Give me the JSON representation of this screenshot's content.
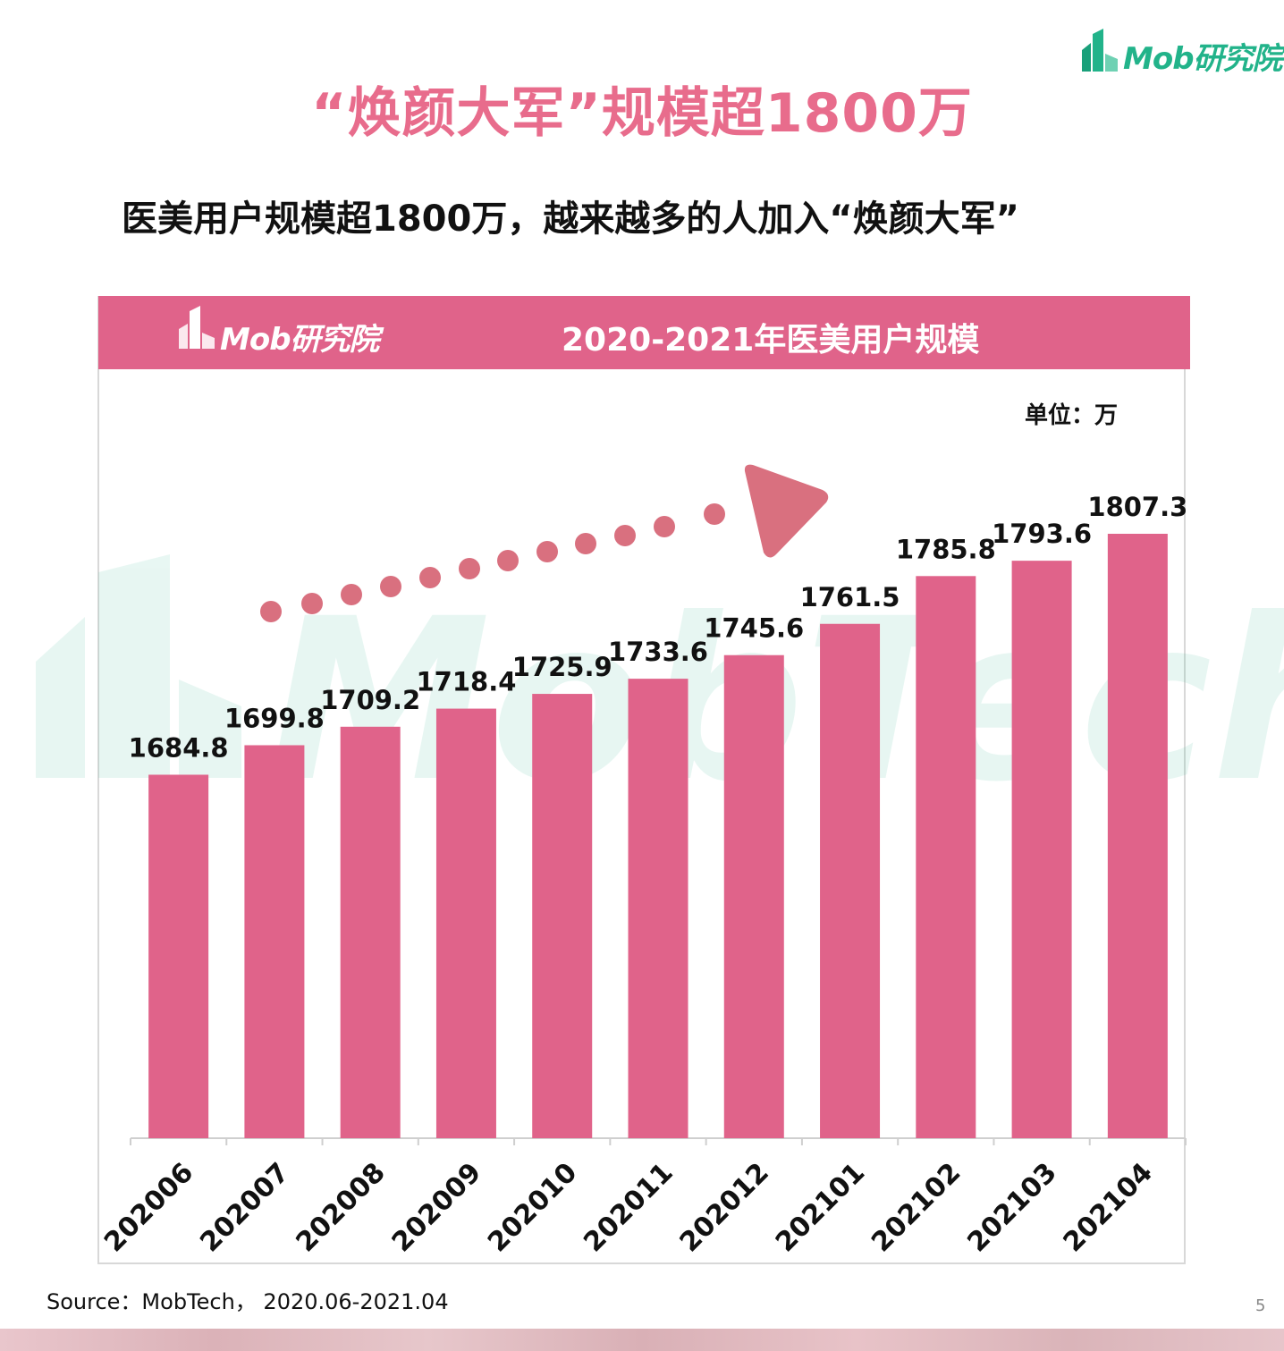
{
  "header": {
    "brand_logo_text": "Mob研究院",
    "page_title": "“焕颜大军”规模超1800万",
    "subtitle": "医美用户规模超1800万，越来越多的人加入“焕颜大军”"
  },
  "chart_panel": {
    "brand_logo_text": "Mob研究院",
    "unit_label": "单位：万"
  },
  "chart_data": {
    "type": "bar",
    "title": "2020-2021年医美用户规模",
    "unit": "万",
    "categories": [
      "202006",
      "202007",
      "202008",
      "202009",
      "202010",
      "202011",
      "202012",
      "202101",
      "202102",
      "202103",
      "202104"
    ],
    "values": [
      1684.8,
      1699.8,
      1709.2,
      1718.4,
      1725.9,
      1733.6,
      1745.6,
      1761.5,
      1785.8,
      1793.6,
      1807.3
    ],
    "ylim": [
      1500,
      1830
    ],
    "grid": false,
    "legend": "none",
    "bar_color": "#e0638a",
    "annotation": "dotted-arrow-upward-trend"
  },
  "footer": {
    "source": "Source：MobTech， 2020.06-2021.04",
    "page_number": "5"
  },
  "colors": {
    "accent": "#e0638a",
    "title_pink": "#e86c8c",
    "brand_green": "#22b38a",
    "arrow": "#d9707f"
  }
}
